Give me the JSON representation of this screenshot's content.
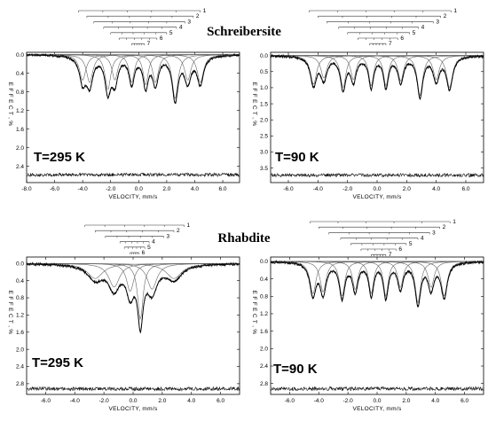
{
  "figure": {
    "section_titles": {
      "top": "Schreibersite",
      "bottom": "Rhabdite"
    },
    "stick_labels": [
      "1",
      "2",
      "3",
      "4",
      "5",
      "6",
      "7"
    ],
    "colors": {
      "data": "#111111",
      "component": "#666666",
      "fit": "#000000",
      "axis": "#000000"
    }
  },
  "chart_data": [
    {
      "type": "line",
      "id": "schreibersite-295K",
      "annotation": "T=295 K",
      "xlabel": "VELOCITY, mm/s",
      "ylabel": "EFFECT, %",
      "xlim": [
        -8.0,
        7.2
      ],
      "ylim": [
        2.75,
        -0.05
      ],
      "x_ticks": [
        -8.0,
        -6.0,
        -4.0,
        -2.0,
        0.0,
        2.0,
        4.0,
        6.0
      ],
      "x_tick_labels": [
        "-8.0",
        "-6.0",
        "-4.0",
        "-2.0",
        "0.0",
        "2.0",
        "4.0",
        "6.0"
      ],
      "y_ticks": [
        0.0,
        0.4,
        0.8,
        1.2,
        1.6,
        2.0,
        2.4
      ],
      "y_tick_labels": [
        "0.0",
        "0.4",
        "0.8",
        "1.2",
        "1.6",
        "2.0",
        "2.4"
      ],
      "residual_baseline": 2.58,
      "stick_ranges": [
        [
          -4.3,
          4.4
        ],
        [
          -3.7,
          3.9
        ],
        [
          -3.2,
          3.3
        ],
        [
          -2.5,
          2.7
        ],
        [
          -2.0,
          2.0
        ],
        [
          -1.4,
          1.3
        ],
        [
          -0.5,
          0.4
        ]
      ],
      "components": [
        {
          "center": -4.0,
          "depth": 0.55,
          "width": 0.55
        },
        {
          "center": -3.5,
          "depth": 0.6,
          "width": 0.55
        },
        {
          "center": -2.2,
          "depth": 0.75,
          "width": 0.5
        },
        {
          "center": -1.7,
          "depth": 0.55,
          "width": 0.5
        },
        {
          "center": -0.5,
          "depth": 0.6,
          "width": 0.45
        },
        {
          "center": 0.5,
          "depth": 0.65,
          "width": 0.45
        },
        {
          "center": 1.2,
          "depth": 0.6,
          "width": 0.5
        },
        {
          "center": 2.6,
          "depth": 0.95,
          "width": 0.5
        },
        {
          "center": 3.5,
          "depth": 0.55,
          "width": 0.55
        },
        {
          "center": 4.4,
          "depth": 0.6,
          "width": 0.55
        }
      ]
    },
    {
      "type": "line",
      "id": "schreibersite-90K",
      "annotation": "T=90 K",
      "xlabel": "VELOCITY, mm/s",
      "ylabel": "EFFECT, %",
      "xlim": [
        -7.2,
        7.2
      ],
      "ylim": [
        3.95,
        -0.1
      ],
      "x_ticks": [
        -6.0,
        -4.0,
        -2.0,
        0.0,
        2.0,
        4.0,
        6.0
      ],
      "x_tick_labels": [
        "-6.0",
        "-4.0",
        "-2.0",
        "0.0",
        "2.0",
        "4.0",
        "6.0"
      ],
      "y_ticks": [
        0.0,
        0.5,
        1.0,
        1.5,
        2.0,
        2.5,
        3.0,
        3.5
      ],
      "y_tick_labels": [
        "0.0",
        "0.5",
        "1.0",
        "1.5",
        "2.0",
        "2.5",
        "3.0",
        "3.5"
      ],
      "residual_baseline": 3.72,
      "stick_ranges": [
        [
          -4.6,
          5.0
        ],
        [
          -4.0,
          4.3
        ],
        [
          -3.4,
          3.8
        ],
        [
          -2.6,
          2.8
        ],
        [
          -2.0,
          2.2
        ],
        [
          -1.3,
          1.4
        ],
        [
          -0.5,
          0.6
        ]
      ],
      "components": [
        {
          "center": -4.3,
          "depth": 0.9,
          "width": 0.5
        },
        {
          "center": -3.6,
          "depth": 0.7,
          "width": 0.5
        },
        {
          "center": -2.3,
          "depth": 1.0,
          "width": 0.45
        },
        {
          "center": -1.6,
          "depth": 0.75,
          "width": 0.45
        },
        {
          "center": -0.4,
          "depth": 0.95,
          "width": 0.4
        },
        {
          "center": 0.6,
          "depth": 0.95,
          "width": 0.4
        },
        {
          "center": 1.6,
          "depth": 0.8,
          "width": 0.45
        },
        {
          "center": 2.9,
          "depth": 1.25,
          "width": 0.45
        },
        {
          "center": 4.0,
          "depth": 0.75,
          "width": 0.5
        },
        {
          "center": 4.9,
          "depth": 1.0,
          "width": 0.5
        }
      ]
    },
    {
      "type": "line",
      "id": "rhabdite-295K",
      "annotation": "T=295 K",
      "xlabel": "VELOCITY, mm/s",
      "ylabel": "EFFECT, %",
      "xlim": [
        -7.3,
        7.3
      ],
      "ylim": [
        3.05,
        -0.15
      ],
      "x_ticks": [
        -6.0,
        -4.0,
        -2.0,
        0.0,
        2.0,
        4.0,
        6.0
      ],
      "x_tick_labels": [
        "-6.0",
        "-4.0",
        "-2.0",
        "0.0",
        "2.0",
        "4.0",
        "6.0"
      ],
      "y_ticks": [
        0.0,
        0.4,
        0.8,
        1.2,
        1.6,
        2.0,
        2.4,
        2.8
      ],
      "y_tick_labels": [
        "0.0",
        "0.4",
        "0.8",
        "1.2",
        "1.6",
        "2.0",
        "2.4",
        "2.8"
      ],
      "residual_baseline": 2.92,
      "stick_ranges": [
        [
          -3.3,
          3.5
        ],
        [
          -2.6,
          2.8
        ],
        [
          -1.9,
          2.1
        ],
        [
          -0.9,
          1.1
        ],
        [
          -0.6,
          0.8
        ],
        [
          -0.2,
          0.4
        ]
      ],
      "components": [
        {
          "center": -2.6,
          "depth": 0.35,
          "width": 1.3
        },
        {
          "center": -1.3,
          "depth": 0.55,
          "width": 0.9
        },
        {
          "center": -0.2,
          "depth": 0.65,
          "width": 0.6
        },
        {
          "center": 0.5,
          "depth": 1.3,
          "width": 0.45
        },
        {
          "center": 1.3,
          "depth": 0.6,
          "width": 0.8
        },
        {
          "center": 2.8,
          "depth": 0.35,
          "width": 1.3
        }
      ]
    },
    {
      "type": "line",
      "id": "rhabdite-90K",
      "annotation": "T=90 K",
      "xlabel": "VELOCITY, mm/s",
      "ylabel": "EFFECT, %",
      "xlim": [
        -7.3,
        7.3
      ],
      "ylim": [
        3.05,
        -0.1
      ],
      "x_ticks": [
        -6.0,
        -4.0,
        -2.0,
        0.0,
        2.0,
        4.0,
        6.0
      ],
      "x_tick_labels": [
        "-6.0",
        "-4.0",
        "-2.0",
        "0.0",
        "2.0",
        "4.0",
        "6.0"
      ],
      "y_ticks": [
        0.0,
        0.4,
        0.8,
        1.2,
        1.6,
        2.0,
        2.4,
        2.8
      ],
      "y_tick_labels": [
        "0.0",
        "0.4",
        "0.8",
        "1.2",
        "1.6",
        "2.0",
        "2.4",
        "2.8"
      ],
      "residual_baseline": 2.92,
      "stick_ranges": [
        [
          -4.6,
          5.0
        ],
        [
          -4.0,
          4.3
        ],
        [
          -3.3,
          3.6
        ],
        [
          -2.5,
          2.8
        ],
        [
          -1.8,
          2.0
        ],
        [
          -1.1,
          1.3
        ],
        [
          -0.4,
          0.6
        ]
      ],
      "components": [
        {
          "center": -4.4,
          "depth": 0.75,
          "width": 0.5
        },
        {
          "center": -3.7,
          "depth": 0.7,
          "width": 0.5
        },
        {
          "center": -2.4,
          "depth": 0.8,
          "width": 0.45
        },
        {
          "center": -1.5,
          "depth": 0.65,
          "width": 0.45
        },
        {
          "center": -0.4,
          "depth": 0.75,
          "width": 0.4
        },
        {
          "center": 0.6,
          "depth": 0.8,
          "width": 0.4
        },
        {
          "center": 1.6,
          "depth": 0.6,
          "width": 0.45
        },
        {
          "center": 2.8,
          "depth": 0.95,
          "width": 0.45
        },
        {
          "center": 3.7,
          "depth": 0.6,
          "width": 0.5
        },
        {
          "center": 4.6,
          "depth": 0.8,
          "width": 0.5
        }
      ]
    }
  ]
}
